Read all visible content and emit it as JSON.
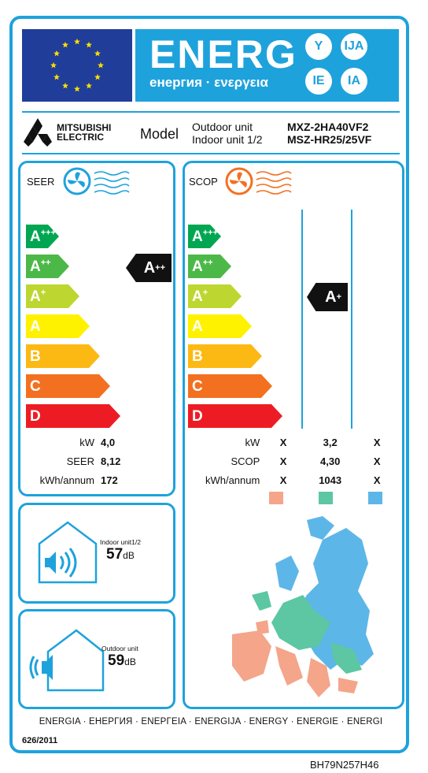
{
  "header": {
    "energy_word": "ENERG",
    "energy_subtitle": "енергия · ενεργεια",
    "circles": [
      "Y",
      "IJA",
      "IE",
      "IA"
    ]
  },
  "supplier": {
    "brand_line1": "MITSUBISHI",
    "brand_line2": "ELECTRIC",
    "model_label": "Model",
    "outdoor_unit_label": "Outdoor unit",
    "indoor_unit_label": "Indoor unit 1/2",
    "outdoor_unit_code": "MXZ-2HA40VF2",
    "indoor_unit_code": "MSZ-HR25/25VF"
  },
  "seer": {
    "label": "SEER",
    "classes": [
      {
        "letter": "A",
        "sup": "+++",
        "color": "#00a651"
      },
      {
        "letter": "A",
        "sup": "++",
        "color": "#4cb848"
      },
      {
        "letter": "A",
        "sup": "+",
        "color": "#bed630"
      },
      {
        "letter": "A",
        "sup": "",
        "color": "#fff200"
      },
      {
        "letter": "B",
        "sup": "",
        "color": "#fdb913"
      },
      {
        "letter": "C",
        "sup": "",
        "color": "#f37021"
      },
      {
        "letter": "D",
        "sup": "",
        "color": "#ed1c24"
      }
    ],
    "rating": {
      "letter": "A",
      "sup": "++"
    },
    "stats": [
      {
        "label": "kW",
        "value": "4,0"
      },
      {
        "label": "SEER",
        "value": "8,12"
      },
      {
        "label": "kWh/annum",
        "value": "172"
      }
    ]
  },
  "scop": {
    "label": "SCOP",
    "rating": {
      "letter": "A",
      "sup": "+"
    },
    "stats": [
      {
        "label": "kW",
        "warm": "X",
        "average": "3,2",
        "cold": "X"
      },
      {
        "label": "SCOP",
        "warm": "X",
        "average": "4,30",
        "cold": "X"
      },
      {
        "label": "kWh/annum",
        "warm": "X",
        "average": "1043",
        "cold": "X"
      }
    ],
    "zone_colors": [
      "#f4a58a",
      "#5cc7a2",
      "#5db6e8"
    ]
  },
  "noise": {
    "indoor_label": "Indoor unit1/2",
    "indoor_value": "57",
    "outdoor_label": "Outdoor unit",
    "outdoor_value": "59",
    "unit": "dB"
  },
  "footer": {
    "languages": "ENERGIA · ЕНЕРГИЯ · ΕΝΕΡΓΕΙΑ · ENERGIJA · ENERGY · ENERGIE · ENERGI",
    "regulation": "626/2011",
    "label_code": "BH79N257H46"
  },
  "colors": {
    "frame": "#1ea2dc",
    "eu_blue": "#1f3d99",
    "eu_star": "#ffdd00",
    "cool_fan": "#1ea2dc",
    "heat_fan": "#f37021"
  }
}
